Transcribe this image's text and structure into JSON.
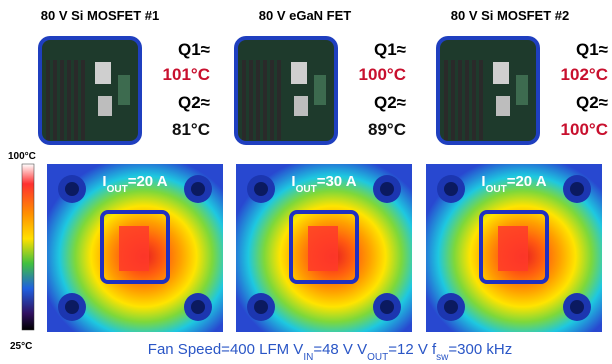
{
  "panels": [
    {
      "title": "80 V Si MOSFET #1",
      "q1_label": "Q1≈",
      "q1_temp": {
        "text": "101°C",
        "color": "#c8102e"
      },
      "q2_label": "Q2≈",
      "q2_temp": {
        "text": "81°C",
        "color": "#111111"
      },
      "current": [
        "I",
        "OUT",
        "=20 A"
      ]
    },
    {
      "title": "80 V eGaN FET",
      "q1_label": "Q1≈",
      "q1_temp": {
        "text": "100°C",
        "color": "#c8102e"
      },
      "q2_label": "Q2≈",
      "q2_temp": {
        "text": "89°C",
        "color": "#111111"
      },
      "current": [
        "I",
        "OUT",
        "=30 A"
      ]
    },
    {
      "title": "80 V Si MOSFET #2",
      "q1_label": "Q1≈",
      "q1_temp": {
        "text": "102°C",
        "color": "#c8102e"
      },
      "q2_label": "Q2≈",
      "q2_temp": {
        "text": "100°C",
        "color": "#c8102e"
      },
      "current": [
        "I",
        "OUT",
        "=20 A"
      ]
    }
  ],
  "colorbar": {
    "max": "100°C",
    "min": "25°C"
  },
  "caption": [
    "Fan Speed=400 LFM V",
    "IN",
    "=48 V V",
    "OUT",
    "=12 V f",
    "sw",
    "=300 kHz"
  ]
}
